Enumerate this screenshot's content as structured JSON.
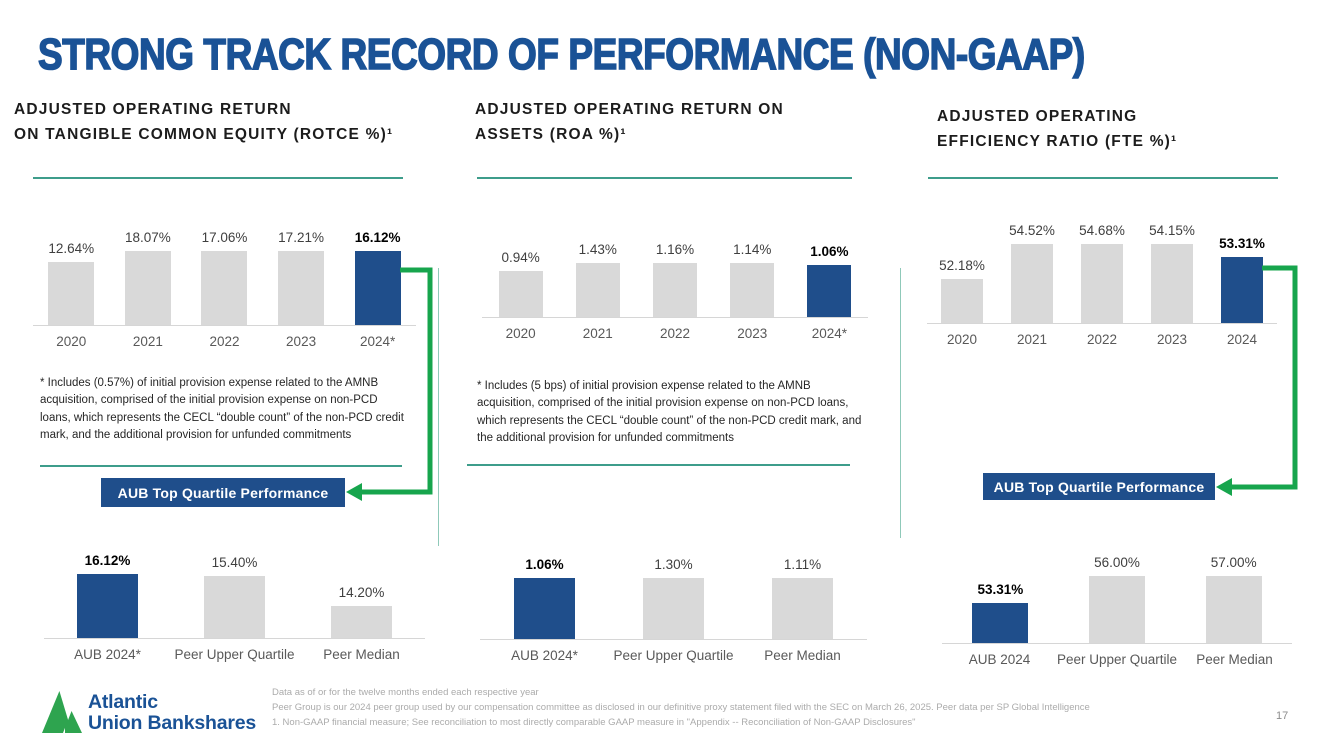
{
  "title": "STRONG TRACK RECORD OF PERFORMANCE (NON-GAAP)",
  "page_number": "17",
  "badge_label": "AUB Top Quartile Performance",
  "theme": {
    "title_blue": "#1A5296",
    "bar_blue": "#1F4E8B",
    "bar_gray": "#D9D9D9",
    "arrow_green": "#17A54D",
    "teal_line": "#3E9D8B",
    "logo_green": "#2EA44F"
  },
  "columns": [
    {
      "header_line1": "ADJUSTED OPERATING RETURN",
      "header_line2": "ON TANGIBLE COMMON EQUITY (ROTCE %)¹",
      "footnote": "*  Includes (0.57%) of initial provision expense related to the AMNB acquisition, comprised of the initial provision expense on non-PCD loans, which represents the CECL “double count” of the non-PCD credit mark, and the additional provision for unfunded commitments"
    },
    {
      "header_line1": "ADJUSTED OPERATING RETURN ON",
      "header_line2": "ASSETS (ROA %)¹",
      "footnote": "*  Includes (5 bps) of initial provision expense related to the AMNB acquisition, comprised of the initial provision expense on non-PCD loans, which represents the CECL “double count” of the non-PCD credit mark, and the additional provision for unfunded commitments"
    },
    {
      "header_line1": "ADJUSTED OPERATING",
      "header_line2": "EFFICIENCY RATIO (FTE %)¹",
      "footnote": ""
    }
  ],
  "chart_data": [
    {
      "type": "bar",
      "title": "Adjusted Operating Return on Tangible Common Equity (ROTCE %) by year",
      "categories": [
        "2020",
        "2021",
        "2022",
        "2023",
        "2024*"
      ],
      "values": [
        12.64,
        18.07,
        17.06,
        17.21,
        16.12
      ],
      "labels": [
        "12.64%",
        "18.07%",
        "17.06%",
        "17.21%",
        "16.12%"
      ],
      "highlight": 4,
      "ylim": [
        0,
        19.2
      ],
      "grid": false,
      "legend": "none"
    },
    {
      "type": "bar",
      "title": "Adjusted Operating Return on Assets (ROA %) by year",
      "categories": [
        "2020",
        "2021",
        "2022",
        "2023",
        "2024*"
      ],
      "values": [
        0.94,
        1.43,
        1.16,
        1.14,
        1.06
      ],
      "labels": [
        "0.94%",
        "1.43%",
        "1.16%",
        "1.14%",
        "1.06%"
      ],
      "highlight": 4,
      "ylim": [
        0,
        1.52
      ],
      "grid": false,
      "legend": "none"
    },
    {
      "type": "bar",
      "title": "Adjusted Operating Efficiency Ratio (FTE %) by year",
      "categories": [
        "2020",
        "2021",
        "2022",
        "2023",
        "2024"
      ],
      "values": [
        52.18,
        54.52,
        54.68,
        54.15,
        53.31
      ],
      "labels": [
        "52.18%",
        "54.52%",
        "54.68%",
        "54.15%",
        "53.31%"
      ],
      "highlight": 4,
      "ylim": [
        50,
        55
      ],
      "grid": false,
      "legend": "none"
    },
    {
      "type": "bar",
      "title": "ROTCE % — AUB vs peer group",
      "categories": [
        "AUB 2024*",
        "Peer Upper Quartile",
        "Peer Median"
      ],
      "values": [
        16.12,
        15.4,
        14.2
      ],
      "labels": [
        "16.12%",
        "15.40%",
        "14.20%"
      ],
      "highlight": 0,
      "ylim": [
        12.9,
        16.3
      ],
      "grid": false,
      "legend": "none"
    },
    {
      "type": "bar",
      "title": "ROA % — AUB vs peer group",
      "categories": [
        "AUB 2024*",
        "Peer Upper Quartile",
        "Peer Median"
      ],
      "values": [
        1.06,
        1.3,
        1.11
      ],
      "labels": [
        "1.06%",
        "1.30%",
        "1.11%"
      ],
      "highlight": 0,
      "ylim": [
        0,
        1.36
      ],
      "grid": false,
      "legend": "none"
    },
    {
      "type": "bar",
      "title": "Efficiency Ratio % — AUB vs peer group",
      "categories": [
        "AUB 2024",
        "Peer Upper Quartile",
        "Peer Median"
      ],
      "values": [
        53.31,
        56.0,
        57.0
      ],
      "labels": [
        "53.31%",
        "56.00%",
        "57.00%"
      ],
      "highlight": 0,
      "ylim": [
        50,
        57.3
      ],
      "grid": false,
      "legend": "none"
    }
  ],
  "footer": {
    "logo_line1": "Atlantic",
    "logo_line2": "Union Bankshares",
    "notes": [
      "Data as of or for the twelve months ended each respective year",
      "Peer Group is our 2024 peer group used by our compensation committee as disclosed in our definitive proxy statement filed with the SEC on March 26, 2025. Peer data per SP Global Intelligence",
      "1. Non-GAAP financial measure; See reconciliation to most directly comparable GAAP measure in \"Appendix -- Reconciliation of Non-GAAP Disclosures\""
    ]
  }
}
